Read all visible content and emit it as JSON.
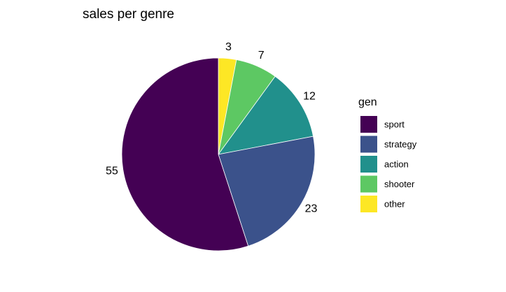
{
  "chart_data": {
    "type": "pie",
    "title": "sales per genre",
    "legend_title": "gen",
    "categories": [
      "sport",
      "strategy",
      "action",
      "shooter",
      "other"
    ],
    "values": [
      55,
      23,
      12,
      7,
      3
    ],
    "colors": [
      "#440154",
      "#3B528B",
      "#21908C",
      "#5DC863",
      "#FDE725"
    ],
    "legend": "right"
  }
}
